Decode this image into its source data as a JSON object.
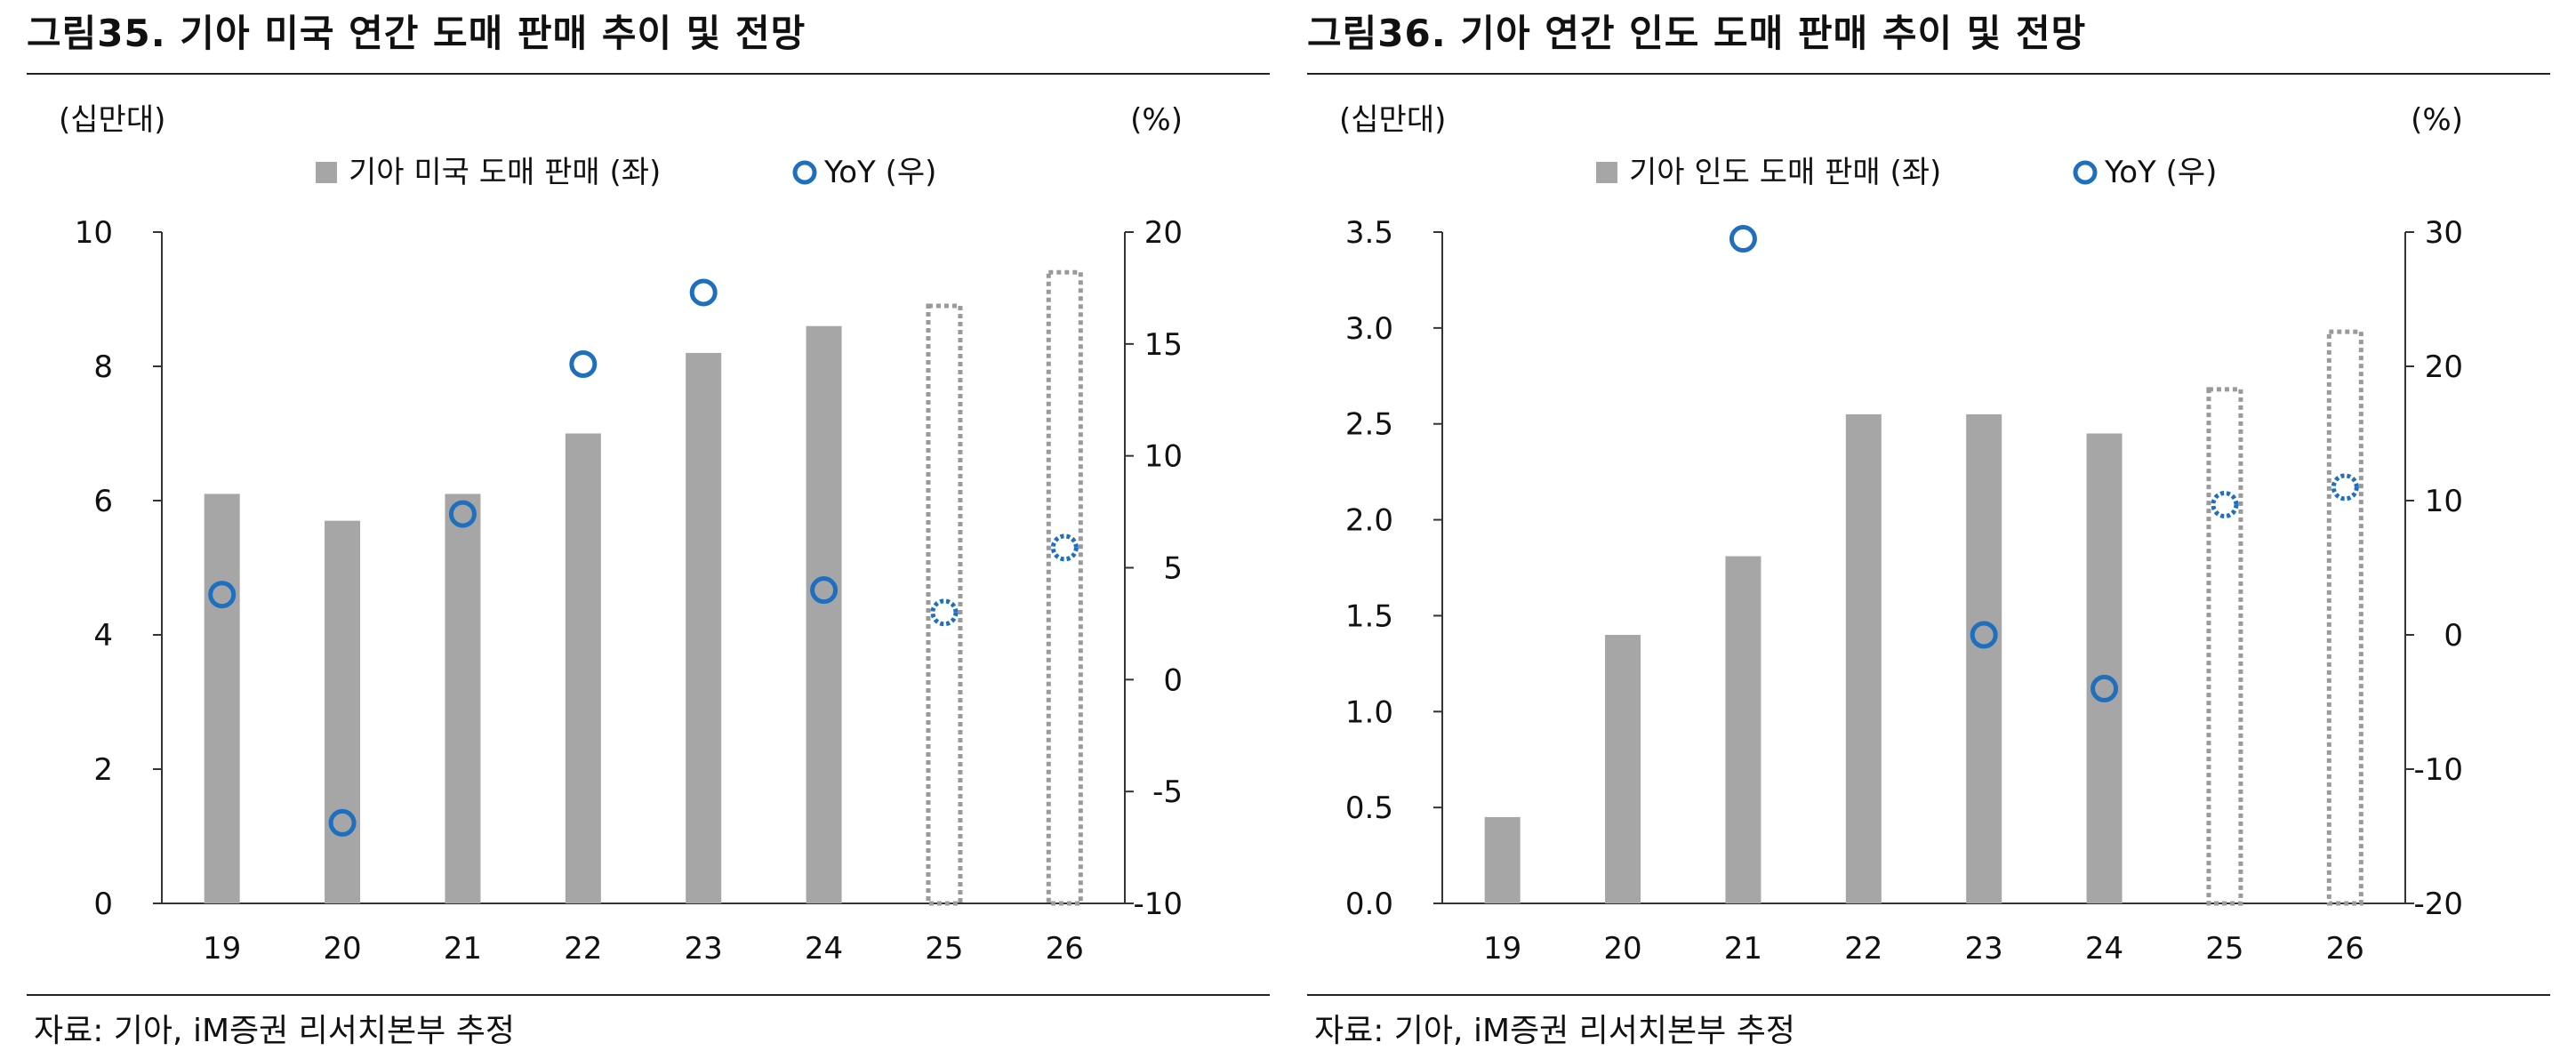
{
  "panels": [
    {
      "title": "그림35.  기아 미국 연간 도매 판매 추이 및 전망",
      "source": "자료: 기아, iM증권 리서치본부 추정",
      "chart_data": {
        "type": "bar",
        "left_unit": "(십만대)",
        "right_unit": "(%)",
        "legend": {
          "bar": "기아 미국 도매 판매 (좌)",
          "point": "YoY (우)"
        },
        "categories": [
          "19",
          "20",
          "21",
          "22",
          "23",
          "24",
          "25",
          "26"
        ],
        "bar_values": [
          6.1,
          5.7,
          6.1,
          7.0,
          8.2,
          8.6,
          8.9,
          9.4
        ],
        "bar_forecast": [
          false,
          false,
          false,
          false,
          false,
          false,
          true,
          true
        ],
        "yoy_values": [
          3.8,
          -6.4,
          7.4,
          14.1,
          17.3,
          4.0,
          3.0,
          5.9
        ],
        "yoy_forecast": [
          false,
          false,
          false,
          false,
          false,
          false,
          true,
          true
        ],
        "left_axis": {
          "min": 0,
          "max": 10,
          "ticks": [
            "0",
            "2",
            "4",
            "6",
            "8",
            "10"
          ]
        },
        "right_axis": {
          "min": -10,
          "max": 20,
          "ticks": [
            "-10",
            "-5",
            "0",
            "5",
            "10",
            "15",
            "20"
          ]
        },
        "bar_color": "#a6a6a6",
        "point_color": "#1f6fbf"
      }
    },
    {
      "title": "그림36.  기아 연간 인도 도매 판매 추이 및 전망",
      "source": "자료: 기아, iM증권 리서치본부 추정",
      "chart_data": {
        "type": "bar",
        "left_unit": "(십만대)",
        "right_unit": "(%)",
        "legend": {
          "bar": "기아 인도 도매 판매 (좌)",
          "point": "YoY (우)"
        },
        "categories": [
          "19",
          "20",
          "21",
          "22",
          "23",
          "24",
          "25",
          "26"
        ],
        "bar_values": [
          0.45,
          1.4,
          1.81,
          2.55,
          2.55,
          2.45,
          2.68,
          2.98
        ],
        "bar_forecast": [
          false,
          false,
          false,
          false,
          false,
          false,
          true,
          true
        ],
        "yoy_values": [
          null,
          null,
          29.5,
          null,
          0.0,
          -4.0,
          9.7,
          11.0
        ],
        "yoy_forecast": [
          false,
          false,
          false,
          false,
          false,
          false,
          true,
          true
        ],
        "left_axis": {
          "min": 0,
          "max": 3.5,
          "ticks": [
            "0.0",
            "0.5",
            "1.0",
            "1.5",
            "2.0",
            "2.5",
            "3.0",
            "3.5"
          ]
        },
        "right_axis": {
          "min": -20,
          "max": 30,
          "ticks": [
            "-20",
            "-10",
            "0",
            "10",
            "20",
            "30"
          ]
        },
        "bar_color": "#a6a6a6",
        "point_color": "#1f6fbf"
      }
    }
  ]
}
